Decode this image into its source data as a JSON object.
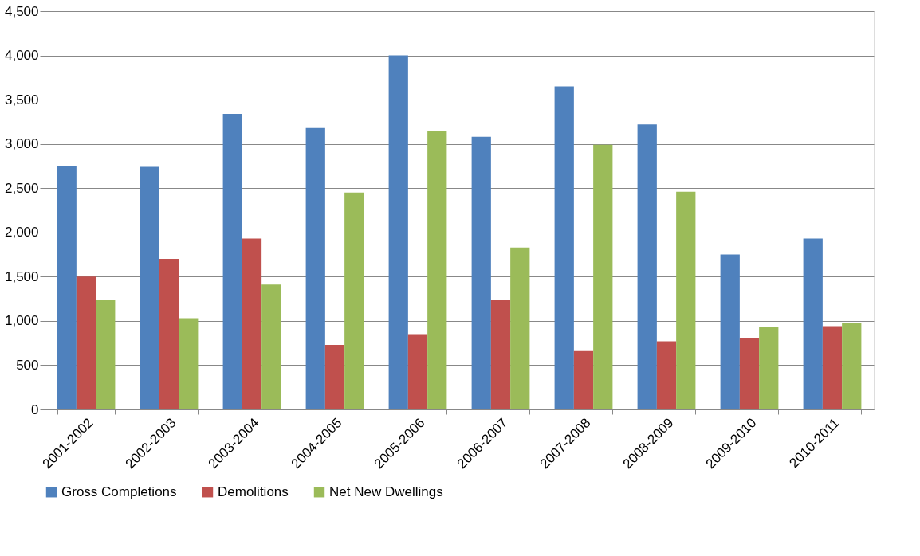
{
  "chart_data": {
    "type": "bar",
    "categories": [
      "2001-2002",
      "2002-2003",
      "2003-2004",
      "2004-2005",
      "2005-2006",
      "2006-2007",
      "2007-2008",
      "2008-2009",
      "2009-2010",
      "2010-2011"
    ],
    "series": [
      {
        "name": "Gross Completions",
        "color": "#4f81bd",
        "values": [
          2750,
          2740,
          3340,
          3180,
          4000,
          3080,
          3650,
          3220,
          1750,
          1930
        ]
      },
      {
        "name": "Demolitions",
        "color": "#c0504d",
        "values": [
          1500,
          1700,
          1930,
          730,
          850,
          1240,
          660,
          770,
          810,
          940
        ]
      },
      {
        "name": "Net New Dwellings",
        "color": "#9bbb59",
        "values": [
          1240,
          1030,
          1410,
          2450,
          3140,
          1830,
          2990,
          2460,
          930,
          980
        ]
      }
    ],
    "ylim": [
      0,
      4500
    ],
    "yticks": [
      {
        "value": 0,
        "label": "0"
      },
      {
        "value": 500,
        "label": "500"
      },
      {
        "value": 1000,
        "label": "1,000"
      },
      {
        "value": 1500,
        "label": "1,500"
      },
      {
        "value": 2000,
        "label": "2,000"
      },
      {
        "value": 2500,
        "label": "2,500"
      },
      {
        "value": 3000,
        "label": "3,000"
      },
      {
        "value": 3500,
        "label": "3,500"
      },
      {
        "value": 4000,
        "label": "4,000"
      },
      {
        "value": 4500,
        "label": "4,500"
      }
    ],
    "grid": "y",
    "legend": "bottom"
  }
}
